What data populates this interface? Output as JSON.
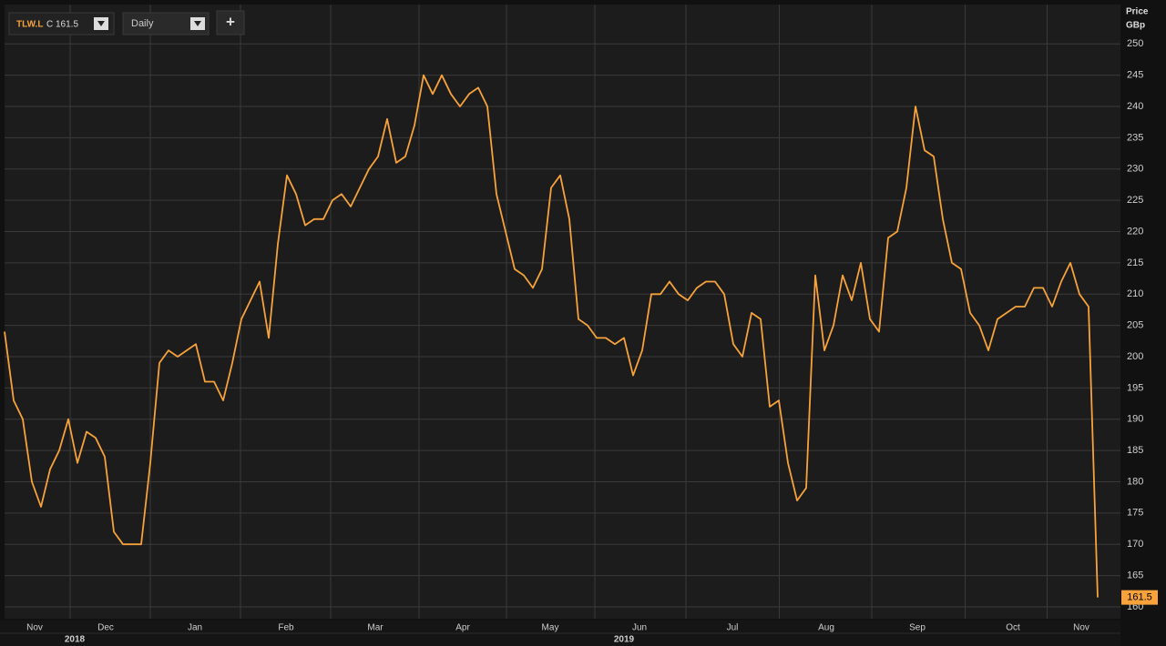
{
  "chart_data": {
    "type": "line",
    "close_prefix": "C",
    "interval": "Daily",
    "add_button": "+",
    "y_axis_label": "Price",
    "y_axis_unit": "GBp",
    "series": [
      {
        "name": "TLW.L",
        "color": "#f7a23b",
        "values": [
          204,
          193,
          190,
          180,
          176,
          182,
          185,
          190,
          183,
          188,
          187,
          184,
          172,
          170,
          170,
          170,
          183,
          199,
          201,
          200,
          201,
          202,
          196,
          196,
          193,
          199,
          206,
          209,
          212,
          203,
          218,
          229,
          226,
          221,
          222,
          222,
          225,
          226,
          224,
          227,
          230,
          232,
          238,
          231,
          232,
          237,
          245,
          242,
          245,
          242,
          240,
          242,
          243,
          240,
          226,
          220,
          214,
          213,
          211,
          214,
          227,
          229,
          222,
          206,
          205,
          203,
          203,
          202,
          203,
          197,
          201,
          210,
          210,
          212,
          210,
          209,
          211,
          212,
          212,
          210,
          202,
          200,
          207,
          206,
          192,
          193,
          183,
          177,
          179,
          213,
          201,
          205,
          213,
          209,
          215,
          206,
          204,
          219,
          220,
          227,
          240,
          233,
          232,
          222,
          215,
          214,
          207,
          205,
          201,
          206,
          207,
          208,
          208,
          211,
          211,
          208,
          212,
          215,
          210,
          208,
          161.5
        ]
      }
    ],
    "ylim": [
      158.1,
      256.3
    ],
    "yticks": [
      160,
      165,
      170,
      175,
      180,
      185,
      190,
      195,
      200,
      205,
      210,
      215,
      220,
      225,
      230,
      235,
      240,
      245,
      250
    ],
    "xlim": [
      0,
      120
    ],
    "xticks": [
      {
        "value": 3.3,
        "label": "Nov"
      },
      {
        "value": 11.1,
        "label": "Dec"
      },
      {
        "value": 20.9,
        "label": "Jan"
      },
      {
        "value": 30.9,
        "label": "Feb"
      },
      {
        "value": 40.7,
        "label": "Mar"
      },
      {
        "value": 50.3,
        "label": "Apr"
      },
      {
        "value": 59.9,
        "label": "May"
      },
      {
        "value": 69.7,
        "label": "Jun"
      },
      {
        "value": 79.9,
        "label": "Jul"
      },
      {
        "value": 90.2,
        "label": "Aug"
      },
      {
        "value": 100.2,
        "label": "Sep"
      },
      {
        "value": 110.7,
        "label": "Oct"
      },
      {
        "value": 118.2,
        "label": "Nov"
      }
    ],
    "year_ticks": [
      {
        "value": 7.7,
        "label": "2018"
      },
      {
        "value": 68,
        "label": "2019"
      }
    ],
    "grid": true
  }
}
